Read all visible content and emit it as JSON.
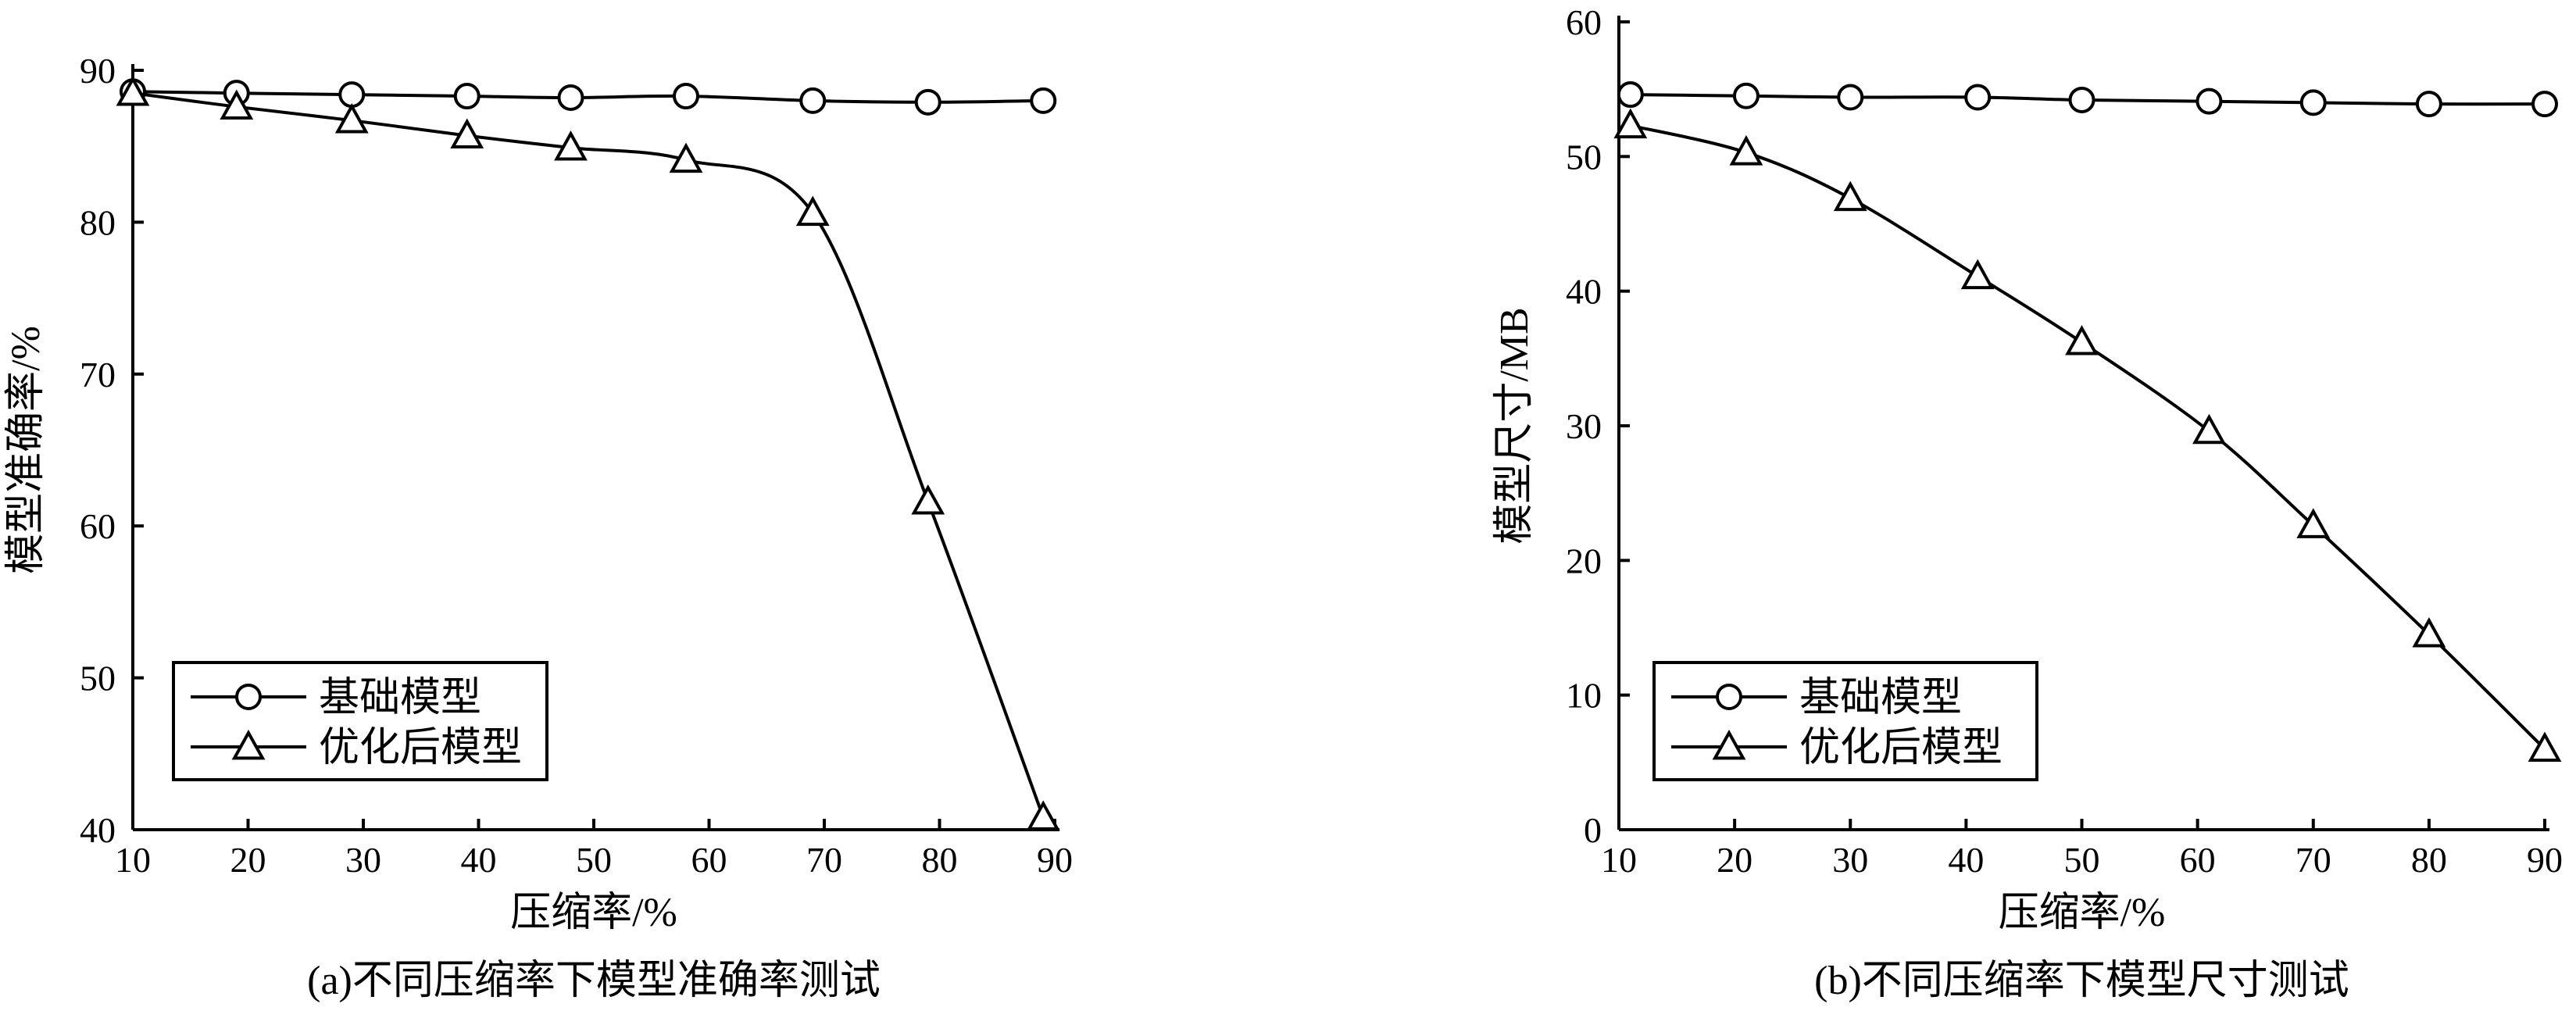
{
  "chart_data": [
    {
      "type": "line",
      "caption": "(a)不同压缩率下模型准确率测试",
      "xlabel": "压缩率/%",
      "ylabel": "模型准确率/%",
      "xlim": [
        10,
        90
      ],
      "ylim": [
        40,
        90
      ],
      "xticks": [
        10,
        20,
        30,
        40,
        50,
        60,
        70,
        80,
        90
      ],
      "yticks": [
        40,
        50,
        60,
        70,
        80,
        90
      ],
      "grid": false,
      "legend_position": "bottom-left",
      "series": [
        {
          "name": "基础模型",
          "marker": "circle",
          "x": [
            10,
            19,
            29,
            39,
            48,
            58,
            69,
            79,
            89
          ],
          "y": [
            88.6,
            88.5,
            88.4,
            88.3,
            88.2,
            88.3,
            88.0,
            87.9,
            88.0
          ]
        },
        {
          "name": "优化后模型",
          "marker": "triangle",
          "x": [
            10,
            19,
            29,
            39,
            48,
            58,
            69,
            79,
            89
          ],
          "y": [
            88.5,
            87.6,
            86.7,
            85.7,
            84.9,
            84.1,
            80.6,
            61.6,
            40.8
          ]
        }
      ]
    },
    {
      "type": "line",
      "caption": "(b)不同压缩率下模型尺寸测试",
      "xlabel": "压缩率/%",
      "ylabel": "模型尺寸/MB",
      "xlim": [
        10,
        90
      ],
      "ylim": [
        0,
        60
      ],
      "xticks": [
        10,
        20,
        30,
        40,
        50,
        60,
        70,
        80,
        90
      ],
      "yticks": [
        0,
        10,
        20,
        30,
        40,
        50,
        60
      ],
      "grid": false,
      "legend_position": "bottom-left",
      "series": [
        {
          "name": "基础模型",
          "marker": "circle",
          "x": [
            11,
            21,
            30,
            41,
            50,
            61,
            70,
            80,
            90
          ],
          "y": [
            54.6,
            54.5,
            54.4,
            54.4,
            54.2,
            54.1,
            54.0,
            53.9,
            53.9
          ]
        },
        {
          "name": "优化后模型",
          "marker": "triangle",
          "x": [
            11,
            21,
            30,
            41,
            50,
            61,
            70,
            80,
            90
          ],
          "y": [
            52.3,
            50.3,
            46.9,
            41.1,
            36.2,
            29.6,
            22.6,
            14.5,
            6.0
          ]
        }
      ]
    }
  ]
}
